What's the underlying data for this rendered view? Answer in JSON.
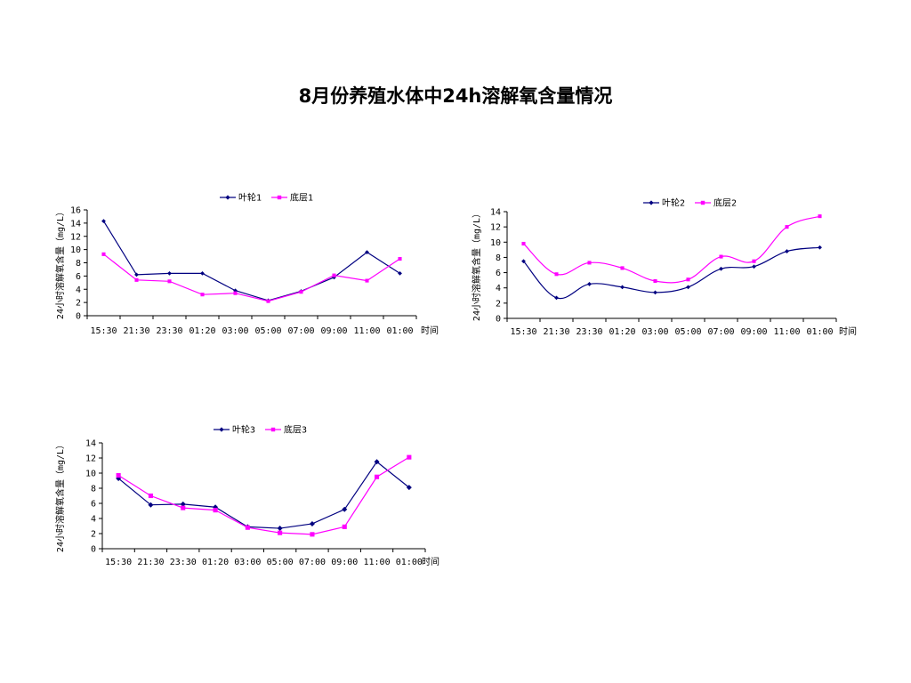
{
  "title": "8月份养殖水体中24h溶解氧含量情况",
  "chart_data": [
    {
      "type": "line",
      "categories": [
        "15:30",
        "21:30",
        "23:30",
        "01:20",
        "03:00",
        "05:00",
        "07:00",
        "09:00",
        "11:00",
        "01:00"
      ],
      "xlabel": "时间",
      "ylabel": "24小时溶解氧含量（mg/L）",
      "ylim": [
        0,
        16
      ],
      "yticks": [
        0,
        2,
        4,
        6,
        8,
        10,
        12,
        14,
        16
      ],
      "legend": "top",
      "series": [
        {
          "name": "叶轮1",
          "color": "#000080",
          "marker": "diamond",
          "values": [
            14.3,
            6.2,
            6.4,
            6.4,
            3.8,
            2.3,
            3.7,
            5.8,
            9.6,
            6.4
          ]
        },
        {
          "name": "底层1",
          "color": "#FF00FF",
          "marker": "square",
          "values": [
            9.3,
            5.4,
            5.2,
            3.2,
            3.4,
            2.2,
            3.6,
            6.1,
            5.3,
            8.6
          ]
        }
      ]
    },
    {
      "type": "line",
      "categories": [
        "15:30",
        "21:30",
        "23:30",
        "01:20",
        "03:00",
        "05:00",
        "07:00",
        "09:00",
        "11:00",
        "01:00"
      ],
      "xlabel": "时间",
      "ylabel": "24小时溶解氧含量（mg/L）",
      "ylim": [
        0,
        14
      ],
      "yticks": [
        0,
        2,
        4,
        6,
        8,
        10,
        12,
        14
      ],
      "legend": "top",
      "series": [
        {
          "name": "叶轮2",
          "color": "#000080",
          "marker": "diamond",
          "values": [
            7.5,
            2.7,
            4.5,
            4.1,
            3.4,
            4.1,
            6.5,
            6.8,
            8.8,
            9.3
          ]
        },
        {
          "name": "底层2",
          "color": "#FF00FF",
          "marker": "square",
          "values": [
            9.8,
            5.8,
            7.3,
            6.6,
            4.9,
            5.1,
            8.1,
            7.5,
            12.0,
            13.4
          ]
        }
      ]
    },
    {
      "type": "line",
      "categories": [
        "15:30",
        "21:30",
        "23:30",
        "01:20",
        "03:00",
        "05:00",
        "07:00",
        "09:00",
        "11:00",
        "01:00"
      ],
      "xlabel": "时间",
      "ylabel": "24小时溶解氧含量（mg/L）",
      "ylim": [
        0,
        14
      ],
      "yticks": [
        0,
        2,
        4,
        6,
        8,
        10,
        12,
        14
      ],
      "legend": "top",
      "series": [
        {
          "name": "叶轮3",
          "color": "#000080",
          "marker": "diamond",
          "values": [
            9.3,
            5.8,
            5.9,
            5.5,
            2.9,
            2.7,
            3.3,
            5.2,
            11.5,
            8.1
          ]
        },
        {
          "name": "底层3",
          "color": "#FF00FF",
          "marker": "square",
          "values": [
            9.7,
            7.0,
            5.4,
            5.1,
            2.8,
            2.1,
            1.9,
            2.9,
            9.5,
            12.1
          ]
        }
      ]
    }
  ]
}
